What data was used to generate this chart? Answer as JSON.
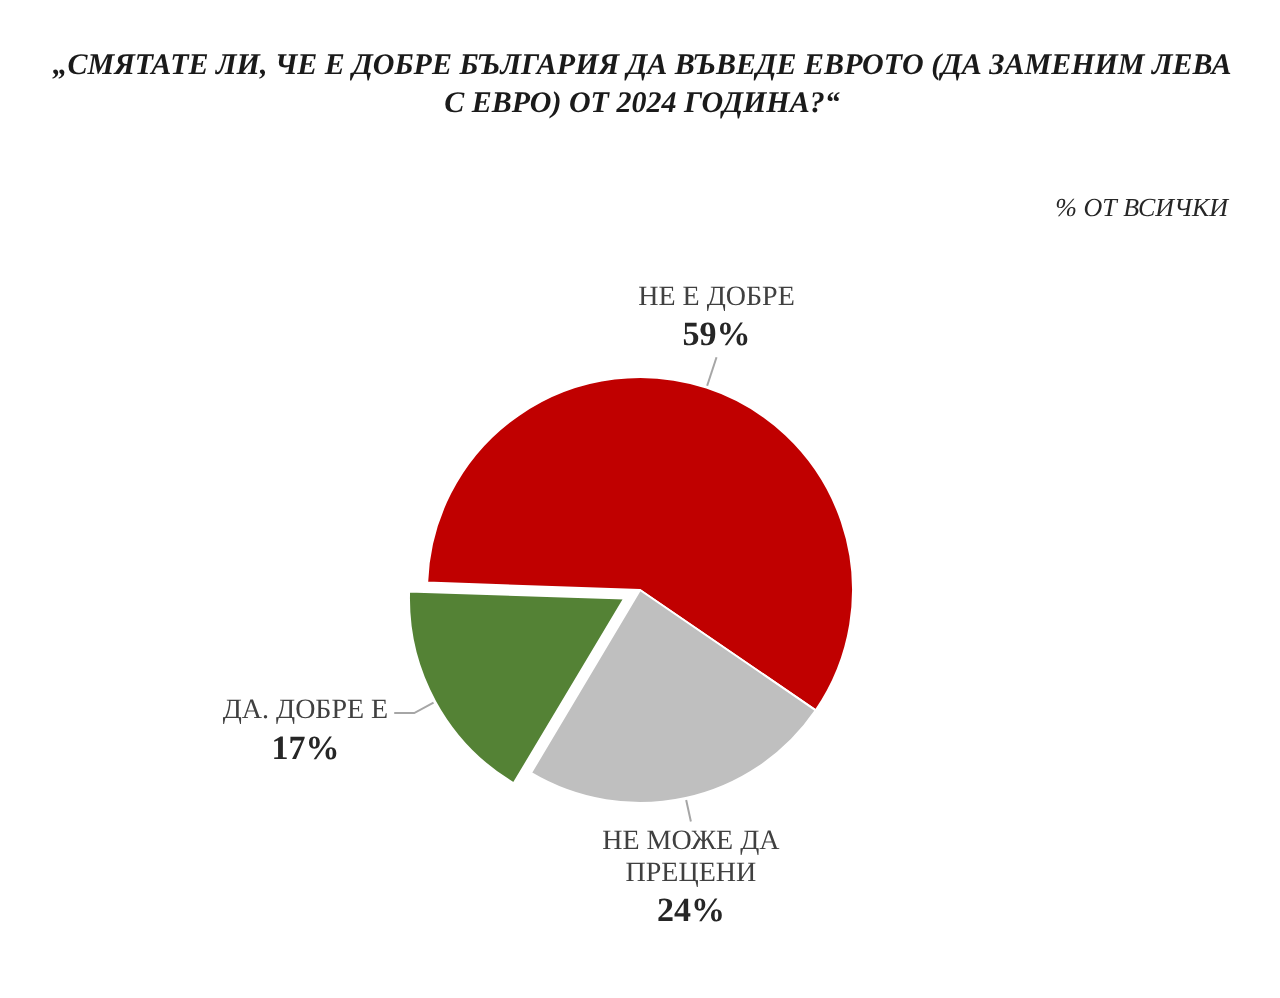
{
  "chart_data": {
    "type": "pie",
    "title": "„СМЯТАТЕ ЛИ, ЧЕ Е ДОБРЕ БЪЛГАРИЯ ДА ВЪВЕДЕ ЕВРОТО (ДА ЗАМЕНИМ ЛЕВА С ЕВРО) ОТ 2024 ГОДИНА?“",
    "annotations": [
      "% ОТ ВСИЧКИ"
    ],
    "categories": [
      "НЕ Е ДОБРЕ",
      "НЕ МОЖЕ ДА ПРЕЦЕНИ",
      "ДА. ДОБРЕ Е"
    ],
    "values": [
      59,
      24,
      17
    ],
    "value_labels": [
      "59%",
      "24%",
      "17%"
    ],
    "colors": [
      "#c00000",
      "#bfbfbf",
      "#548235"
    ],
    "legend": false
  }
}
